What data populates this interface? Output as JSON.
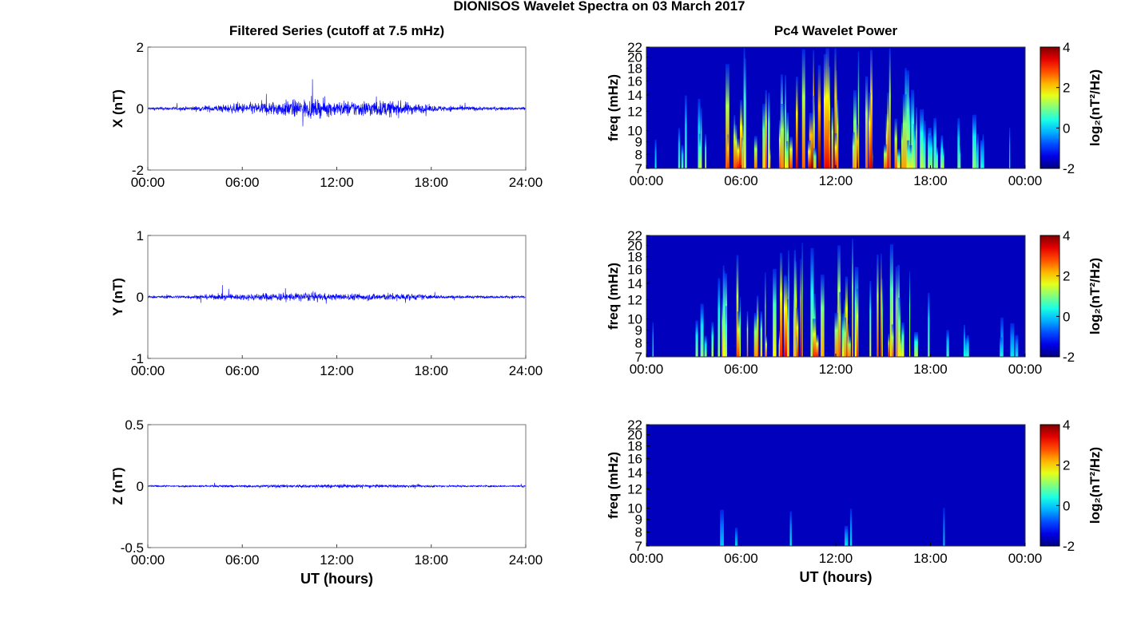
{
  "figure": {
    "title": "DIONISOS Wavelet Spectra on 03 March 2017"
  },
  "chart_data": [
    {
      "type": "line",
      "title": "Filtered Series (cutoff at 7.5 mHz)",
      "ylabel": "X (nT)",
      "xlabel": "",
      "xlim": [
        0,
        24
      ],
      "xticks": [
        "00:00",
        "06:00",
        "12:00",
        "18:00",
        "24:00"
      ],
      "ylim": [
        -2,
        2
      ],
      "yticks": [
        "-2",
        "0",
        "2"
      ],
      "series": [
        {
          "color": "#0000ff",
          "noise_envelope": [
            [
              0,
              0.08
            ],
            [
              2,
              0.08
            ],
            [
              4,
              0.15
            ],
            [
              6,
              0.25
            ],
            [
              8,
              0.35
            ],
            [
              10,
              0.45
            ],
            [
              12,
              0.35
            ],
            [
              14,
              0.4
            ],
            [
              16,
              0.35
            ],
            [
              18,
              0.15
            ],
            [
              20,
              0.12
            ],
            [
              22,
              0.08
            ],
            [
              24,
              0.08
            ]
          ]
        }
      ]
    },
    {
      "type": "line",
      "title": "",
      "ylabel": "Y (nT)",
      "xlabel": "",
      "xlim": [
        0,
        24
      ],
      "xticks": [
        "00:00",
        "06:00",
        "12:00",
        "18:00",
        "24:00"
      ],
      "ylim": [
        -1,
        1
      ],
      "yticks": [
        "-1",
        "0",
        "1"
      ],
      "series": [
        {
          "color": "#0000ff",
          "noise_envelope": [
            [
              0,
              0.06
            ],
            [
              2,
              0.08
            ],
            [
              4,
              0.12
            ],
            [
              6,
              0.15
            ],
            [
              8,
              0.2
            ],
            [
              10,
              0.2
            ],
            [
              12,
              0.15
            ],
            [
              14,
              0.17
            ],
            [
              16,
              0.18
            ],
            [
              18,
              0.1
            ],
            [
              20,
              0.07
            ],
            [
              22,
              0.06
            ],
            [
              24,
              0.06
            ]
          ]
        }
      ]
    },
    {
      "type": "line",
      "title": "",
      "ylabel": "Z (nT)",
      "xlabel": "UT (hours)",
      "xlim": [
        0,
        24
      ],
      "xticks": [
        "00:00",
        "06:00",
        "12:00",
        "18:00",
        "24:00"
      ],
      "ylim": [
        -0.5,
        0.5
      ],
      "yticks": [
        "-0.5",
        "0",
        "0.5"
      ],
      "series": [
        {
          "color": "#0000ff",
          "noise_envelope": [
            [
              0,
              0.04
            ],
            [
              4,
              0.05
            ],
            [
              7,
              0.07
            ],
            [
              10,
              0.08
            ],
            [
              13,
              0.08
            ],
            [
              16,
              0.07
            ],
            [
              19,
              0.05
            ],
            [
              24,
              0.04
            ]
          ]
        }
      ]
    },
    {
      "type": "heatmap",
      "title": "Pc4 Wavelet Power",
      "ylabel": "freq (mHz)",
      "xlabel": "",
      "xlim": [
        0,
        24
      ],
      "xticks": [
        "00:00",
        "06:00",
        "12:00",
        "18:00",
        "00:00"
      ],
      "ylim": [
        7,
        22
      ],
      "yscale": "log",
      "yticks": [
        "7",
        "8",
        "9",
        "10",
        "12",
        "14",
        "16",
        "18",
        "20",
        "22"
      ],
      "colorbar": {
        "label": "log₂(nT²/Hz)",
        "range": [
          -2,
          4
        ],
        "ticks": [
          "-2",
          "0",
          "2",
          "4"
        ],
        "colormap": "jet"
      },
      "activity": [
        [
          0,
          0.15
        ],
        [
          2,
          0.3
        ],
        [
          3.5,
          0.45
        ],
        [
          5,
          0.75
        ],
        [
          7,
          0.85
        ],
        [
          9,
          0.8
        ],
        [
          10.5,
          1.0
        ],
        [
          12,
          0.85
        ],
        [
          13.5,
          0.95
        ],
        [
          15,
          0.9
        ],
        [
          16.5,
          0.6
        ],
        [
          18,
          0.5
        ],
        [
          20,
          0.3
        ],
        [
          22,
          0.25
        ],
        [
          24,
          0.15
        ]
      ]
    },
    {
      "type": "heatmap",
      "title": "",
      "ylabel": "freq (mHz)",
      "xlabel": "",
      "xlim": [
        0,
        24
      ],
      "xticks": [
        "00:00",
        "06:00",
        "12:00",
        "18:00",
        "00:00"
      ],
      "ylim": [
        7,
        22
      ],
      "yscale": "log",
      "yticks": [
        "7",
        "8",
        "9",
        "10",
        "12",
        "14",
        "16",
        "18",
        "20",
        "22"
      ],
      "colorbar": {
        "label": "log₂(nT²/Hz)",
        "range": [
          -2,
          4
        ],
        "ticks": [
          "-2",
          "0",
          "2",
          "4"
        ],
        "colormap": "jet"
      },
      "activity": [
        [
          0,
          0.1
        ],
        [
          2,
          0.25
        ],
        [
          4,
          0.45
        ],
        [
          6,
          0.75
        ],
        [
          8,
          0.8
        ],
        [
          10,
          0.75
        ],
        [
          12,
          0.7
        ],
        [
          13.5,
          0.8
        ],
        [
          15.5,
          0.85
        ],
        [
          17,
          0.55
        ],
        [
          19,
          0.3
        ],
        [
          22,
          0.15
        ],
        [
          24,
          0.1
        ]
      ]
    },
    {
      "type": "heatmap",
      "title": "",
      "ylabel": "freq (mHz)",
      "xlabel": "UT (hours)",
      "xlim": [
        0,
        24
      ],
      "xticks": [
        "00:00",
        "06:00",
        "12:00",
        "18:00",
        "00:00"
      ],
      "ylim": [
        7,
        22
      ],
      "yscale": "log",
      "yticks": [
        "7",
        "8",
        "9",
        "10",
        "12",
        "14",
        "16",
        "18",
        "20",
        "22"
      ],
      "colorbar": {
        "label": "log₂(nT²/Hz)",
        "range": [
          -2,
          4
        ],
        "ticks": [
          "-2",
          "0",
          "2",
          "4"
        ],
        "colormap": "jet"
      },
      "activity": [
        [
          0,
          0.02
        ],
        [
          6,
          0.05
        ],
        [
          7,
          0.12
        ],
        [
          8.5,
          0.12
        ],
        [
          10,
          0.1
        ],
        [
          12,
          0.08
        ],
        [
          14,
          0.15
        ],
        [
          15,
          0.2
        ],
        [
          17,
          0.06
        ],
        [
          24,
          0.02
        ]
      ]
    }
  ]
}
